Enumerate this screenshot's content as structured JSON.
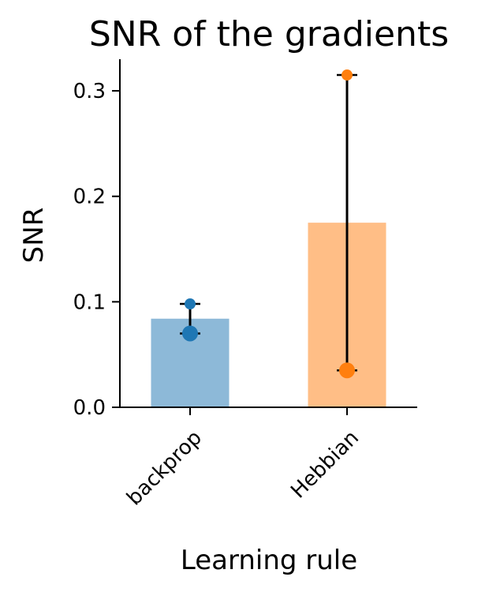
{
  "chart_data": {
    "type": "bar",
    "title": "SNR of the gradients",
    "xlabel": "Learning rule",
    "ylabel": "SNR",
    "ylim": [
      0,
      0.33
    ],
    "yticks": [
      0.0,
      0.1,
      0.2,
      0.3
    ],
    "ytick_labels": [
      "0.0",
      "0.1",
      "0.2",
      "0.3"
    ],
    "categories": [
      "backprop",
      "Hebbian"
    ],
    "values": [
      0.084,
      0.175
    ],
    "bar_colors": [
      "#8db9d8",
      "#ffbe86"
    ],
    "point_colors": [
      "#1f77b4",
      "#ff7f0e"
    ],
    "points": [
      [
        0.098,
        0.07
      ],
      [
        0.315,
        0.035
      ]
    ],
    "error_ranges": [
      [
        0.07,
        0.098
      ],
      [
        0.035,
        0.315
      ]
    ],
    "grid": false,
    "legend": "none"
  }
}
